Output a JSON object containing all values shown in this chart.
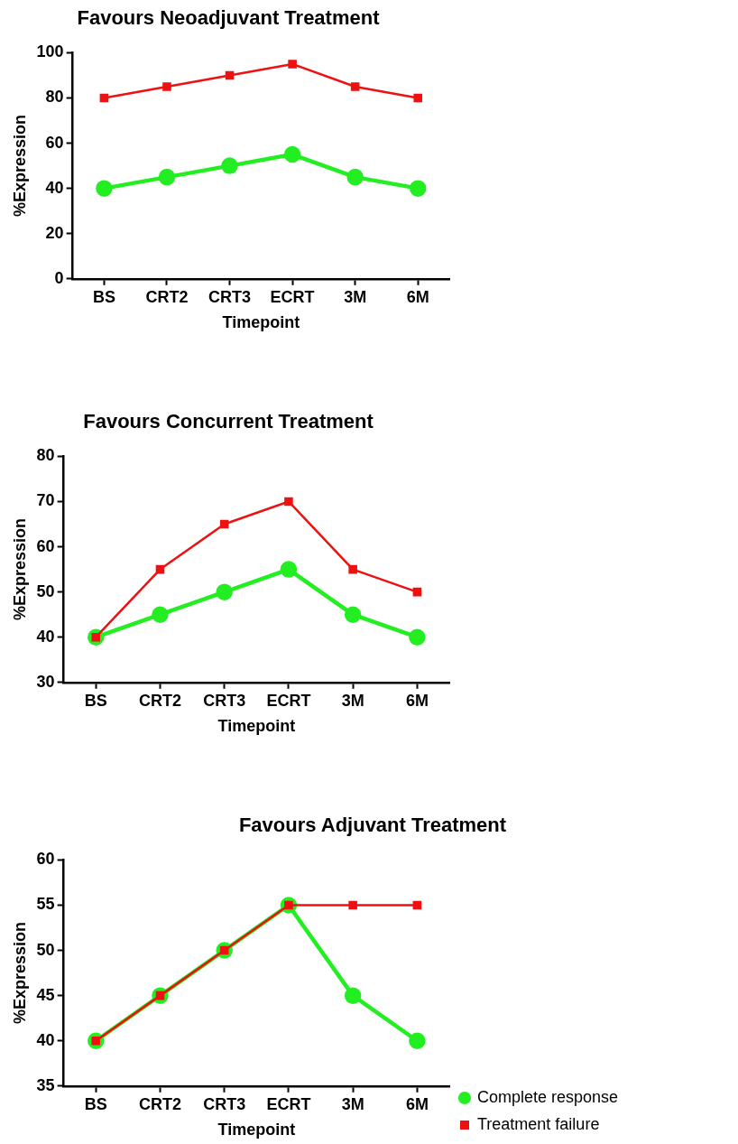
{
  "chart_data": [
    {
      "type": "line",
      "title": "Favours Neoadjuvant Treatment",
      "xlabel": "Timepoint",
      "ylabel": "%Expression",
      "categories": [
        "BS",
        "CRT2",
        "CRT3",
        "ECRT",
        "3M",
        "6M"
      ],
      "ylim": [
        0,
        100
      ],
      "yticks": [
        0,
        20,
        40,
        60,
        80,
        100
      ],
      "grid": false,
      "series": [
        {
          "color": "#22ee22",
          "marker": "circle",
          "values": [
            40,
            45,
            50,
            55,
            45,
            40
          ]
        },
        {
          "color": "#ee1111",
          "marker": "square",
          "values": [
            80,
            85,
            90,
            95,
            85,
            80
          ]
        }
      ]
    },
    {
      "type": "line",
      "title": "Favours Concurrent Treatment",
      "xlabel": "Timepoint",
      "ylabel": "%Expression",
      "categories": [
        "BS",
        "CRT2",
        "CRT3",
        "ECRT",
        "3M",
        "6M"
      ],
      "ylim": [
        30,
        80
      ],
      "yticks": [
        30,
        40,
        50,
        60,
        70,
        80
      ],
      "grid": false,
      "series": [
        {
          "color": "#22ee22",
          "marker": "circle",
          "values": [
            40,
            45,
            50,
            55,
            45,
            40
          ]
        },
        {
          "color": "#ee1111",
          "marker": "square",
          "values": [
            40,
            55,
            65,
            70,
            55,
            50
          ]
        }
      ]
    },
    {
      "type": "line",
      "title": "Favours Adjuvant Treatment",
      "xlabel": "Timepoint",
      "ylabel": "%Expression",
      "categories": [
        "BS",
        "CRT2",
        "CRT3",
        "ECRT",
        "3M",
        "6M"
      ],
      "ylim": [
        35,
        60
      ],
      "yticks": [
        35,
        40,
        45,
        50,
        55,
        60
      ],
      "grid": false,
      "legend": "bottom right",
      "series": [
        {
          "name": "Complete response",
          "color": "#22ee22",
          "marker": "circle",
          "values": [
            40,
            45,
            50,
            55,
            45,
            40
          ]
        },
        {
          "name": "Treatment failure",
          "color": "#ee1111",
          "marker": "square",
          "values": [
            40,
            45,
            50,
            55,
            55,
            55
          ]
        }
      ]
    }
  ]
}
